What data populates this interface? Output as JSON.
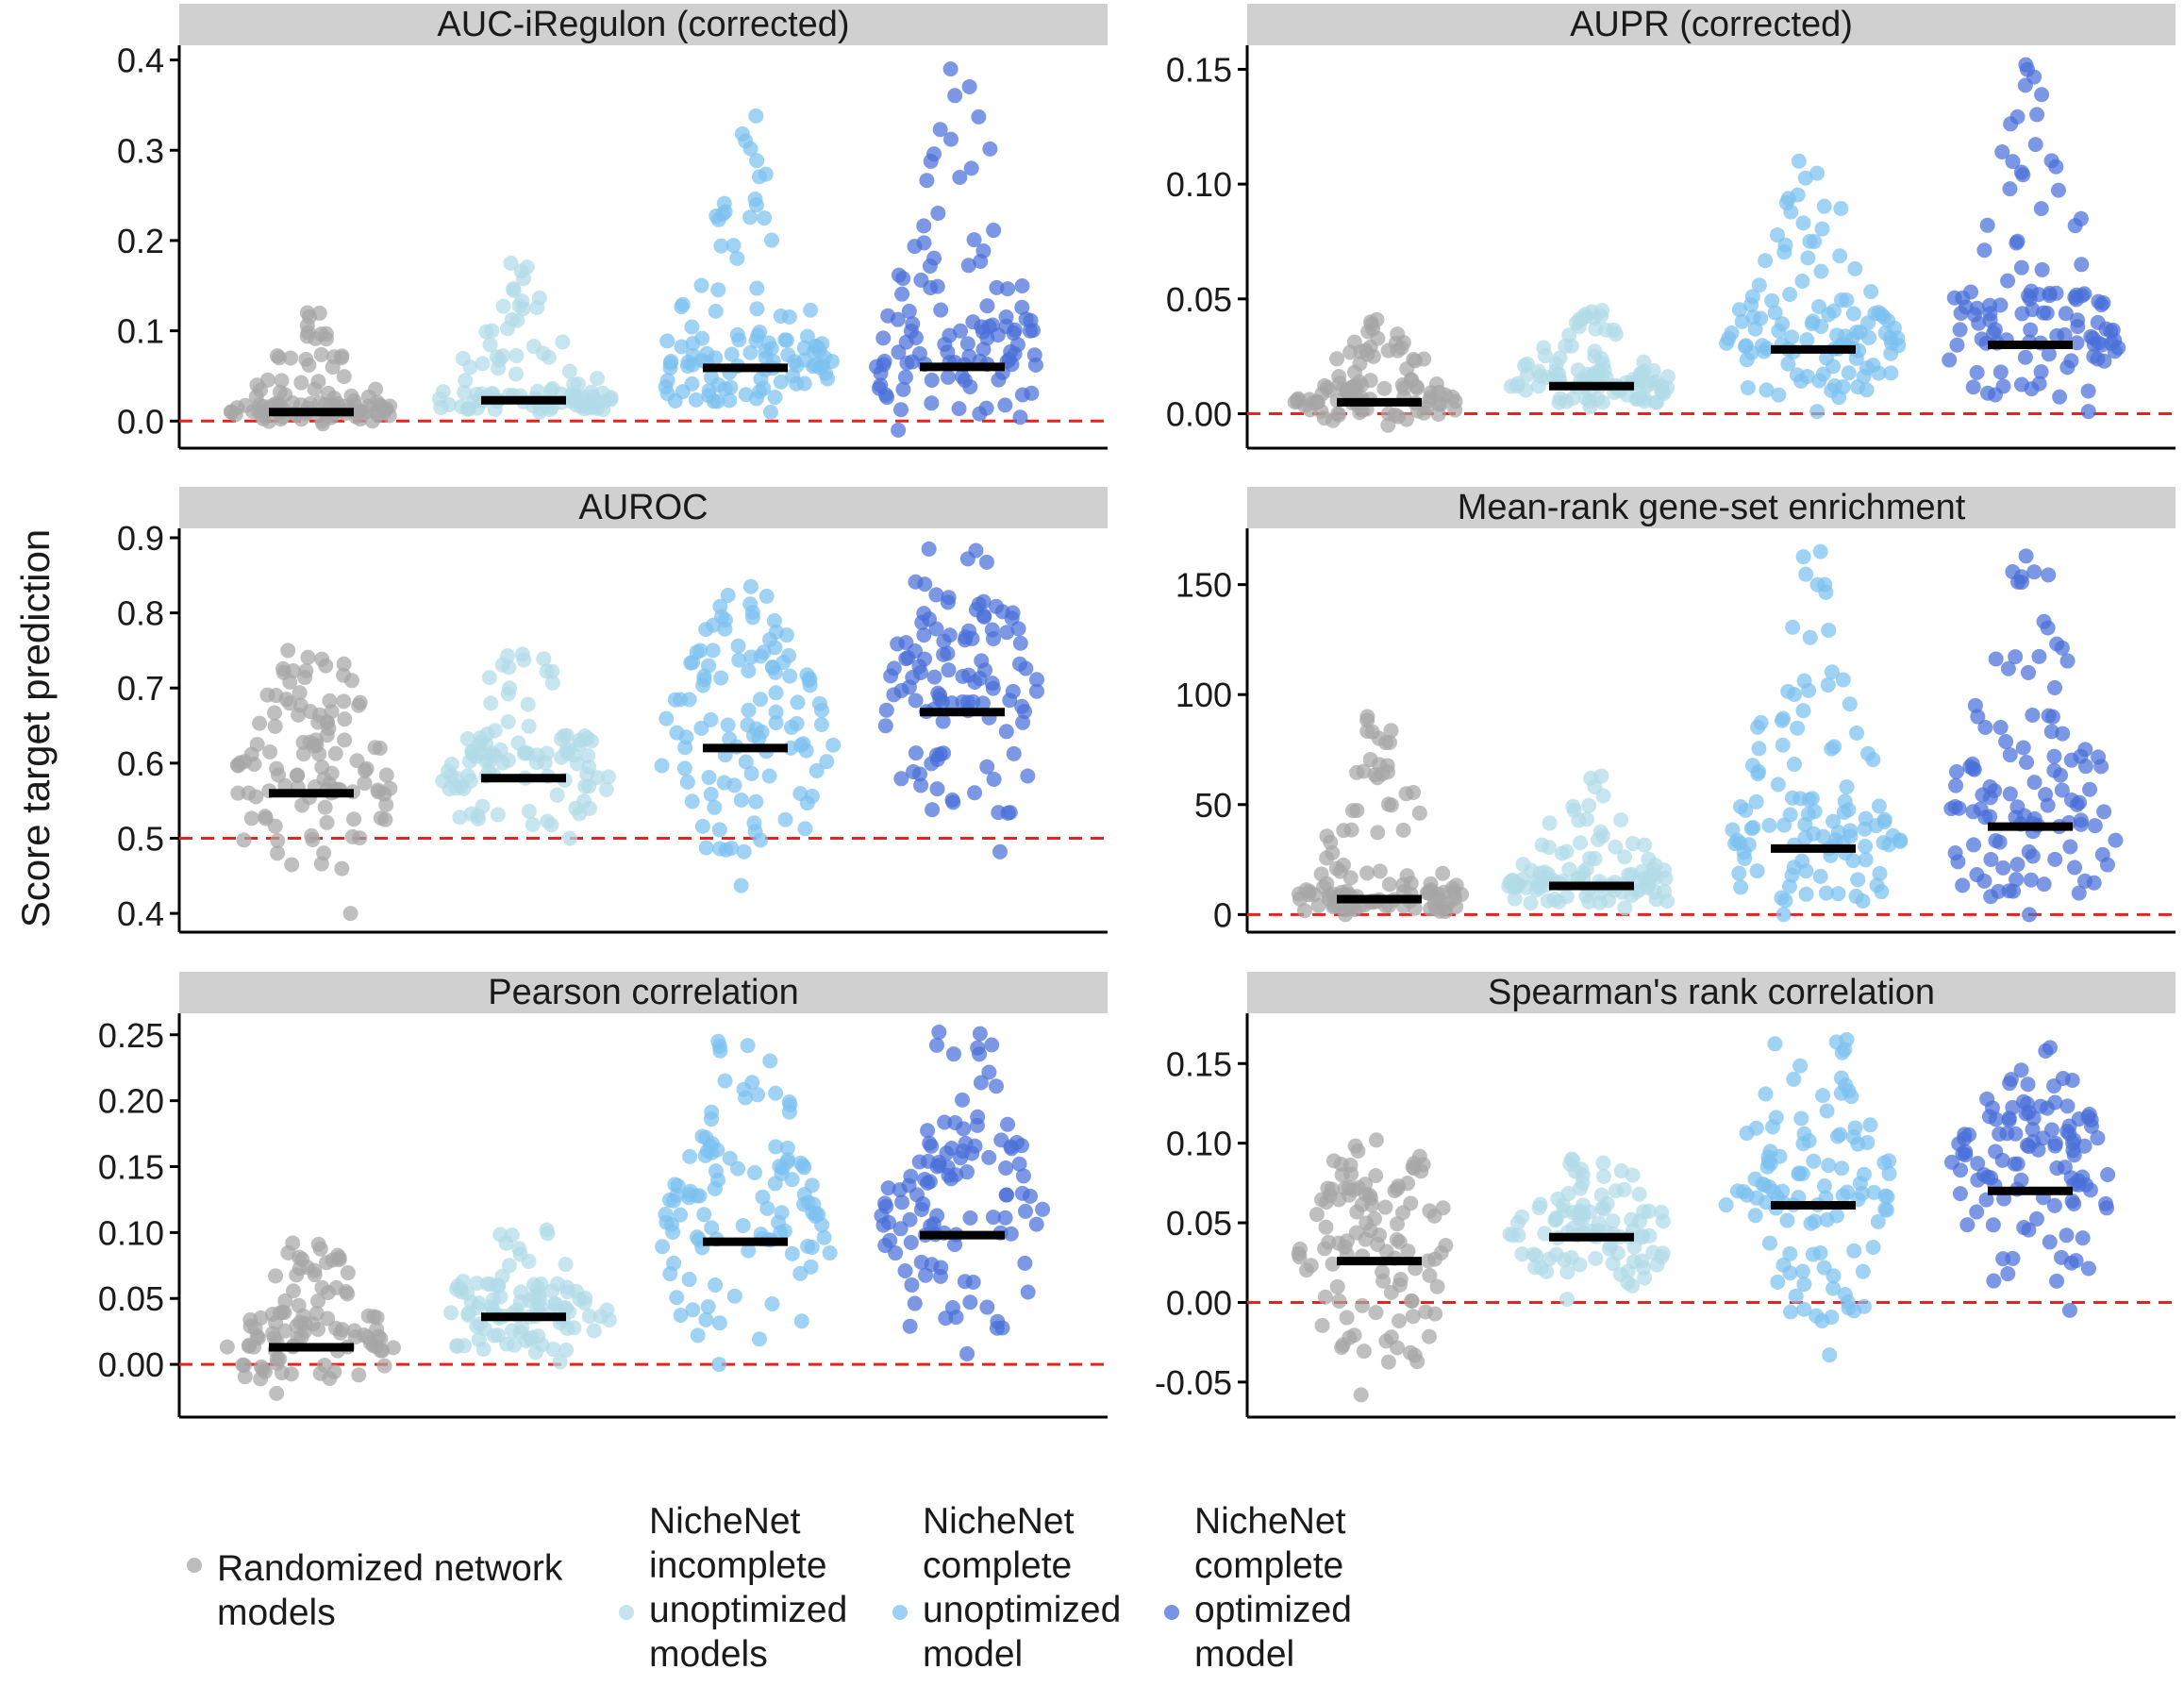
{
  "figure": {
    "ylabel": "Score target prediction"
  },
  "legend": {
    "items": [
      {
        "lines": [
          "Randomized network",
          "models"
        ],
        "color": "#a6a6a6"
      },
      {
        "lines": [
          "NicheNet",
          "incomplete",
          "unoptimized",
          "models"
        ],
        "color": "#b2dbe8"
      },
      {
        "lines": [
          "NicheNet",
          "complete",
          "unoptimized",
          "model"
        ],
        "color": "#7cc0f0"
      },
      {
        "lines": [
          "NicheNet",
          "complete",
          "optimized",
          "model"
        ],
        "color": "#4a6fd8"
      }
    ]
  },
  "chart_data": [
    {
      "type": "scatter",
      "title": "AUC-iRegulon (corrected)",
      "groups": [
        "Randomized network models",
        "NicheNet incomplete unoptimized models",
        "NicheNet complete unoptimized model",
        "NicheNet complete optimized model"
      ],
      "colors": [
        "#a6a6a6",
        "#b2dbe8",
        "#7cc0f0",
        "#4a6fd8"
      ],
      "ylim": [
        -0.03,
        0.41
      ],
      "yticks": [
        0.0,
        0.1,
        0.2,
        0.3,
        0.4
      ],
      "ytick_labels": [
        "0.0",
        "0.1",
        "0.2",
        "0.3",
        "0.4"
      ],
      "reference_line": 0.0,
      "medians": [
        0.01,
        0.023,
        0.059,
        0.06
      ],
      "summary": [
        {
          "min": -0.003,
          "max": 0.12,
          "n": 100
        },
        {
          "min": 0.01,
          "max": 0.175,
          "n": 100
        },
        {
          "min": 0.01,
          "max": 0.338,
          "n": 110
        },
        {
          "min": -0.01,
          "max": 0.39,
          "n": 110
        }
      ]
    },
    {
      "type": "scatter",
      "title": "AUPR (corrected)",
      "groups": [
        "Randomized network models",
        "NicheNet incomplete unoptimized models",
        "NicheNet complete unoptimized model",
        "NicheNet complete optimized model"
      ],
      "colors": [
        "#a6a6a6",
        "#b2dbe8",
        "#7cc0f0",
        "#4a6fd8"
      ],
      "ylim": [
        -0.015,
        0.158
      ],
      "yticks": [
        0.0,
        0.05,
        0.1,
        0.15
      ],
      "ytick_labels": [
        "0.00",
        "0.05",
        "0.10",
        "0.15"
      ],
      "reference_line": 0.0,
      "medians": [
        0.005,
        0.012,
        0.028,
        0.03
      ],
      "summary": [
        {
          "min": -0.005,
          "max": 0.041,
          "n": 100
        },
        {
          "min": 0.003,
          "max": 0.045,
          "n": 100
        },
        {
          "min": 0.001,
          "max": 0.11,
          "n": 110
        },
        {
          "min": 0.001,
          "max": 0.152,
          "n": 110
        }
      ]
    },
    {
      "type": "scatter",
      "title": "AUROC",
      "groups": [
        "Randomized network models",
        "NicheNet incomplete unoptimized models",
        "NicheNet complete unoptimized model",
        "NicheNet complete optimized model"
      ],
      "colors": [
        "#a6a6a6",
        "#b2dbe8",
        "#7cc0f0",
        "#4a6fd8"
      ],
      "ylim": [
        0.375,
        0.905
      ],
      "yticks": [
        0.4,
        0.5,
        0.6,
        0.7,
        0.8,
        0.9
      ],
      "ytick_labels": [
        "0.4",
        "0.5",
        "0.6",
        "0.7",
        "0.8",
        "0.9"
      ],
      "reference_line": 0.5,
      "medians": [
        0.56,
        0.58,
        0.62,
        0.668
      ],
      "summary": [
        {
          "min": 0.4,
          "max": 0.75,
          "n": 110
        },
        {
          "min": 0.5,
          "max": 0.745,
          "n": 100
        },
        {
          "min": 0.437,
          "max": 0.835,
          "n": 110
        },
        {
          "min": 0.482,
          "max": 0.885,
          "n": 110
        }
      ]
    },
    {
      "type": "scatter",
      "title": "Mean-rank gene-set enrichment",
      "groups": [
        "Randomized network models",
        "NicheNet incomplete unoptimized models",
        "NicheNet complete unoptimized model",
        "NicheNet complete optimized model"
      ],
      "colors": [
        "#a6a6a6",
        "#b2dbe8",
        "#7cc0f0",
        "#4a6fd8"
      ],
      "ylim": [
        -8,
        173
      ],
      "yticks": [
        0,
        50,
        100,
        150
      ],
      "ytick_labels": [
        "0",
        "50",
        "100",
        "150"
      ],
      "reference_line": 0,
      "medians": [
        7,
        13,
        30,
        40
      ],
      "summary": [
        {
          "min": 0,
          "max": 90,
          "n": 110
        },
        {
          "min": 3,
          "max": 63,
          "n": 100
        },
        {
          "min": 0,
          "max": 165,
          "n": 110
        },
        {
          "min": 0,
          "max": 163,
          "n": 110
        }
      ]
    },
    {
      "type": "scatter",
      "title": "Pearson correlation",
      "groups": [
        "Randomized network models",
        "NicheNet incomplete unoptimized models",
        "NicheNet complete unoptimized model",
        "NicheNet complete optimized model"
      ],
      "colors": [
        "#a6a6a6",
        "#b2dbe8",
        "#7cc0f0",
        "#4a6fd8"
      ],
      "ylim": [
        -0.04,
        0.262
      ],
      "yticks": [
        0.0,
        0.05,
        0.1,
        0.15,
        0.2,
        0.25
      ],
      "ytick_labels": [
        "0.00",
        "0.05",
        "0.10",
        "0.15",
        "0.20",
        "0.25"
      ],
      "reference_line": 0.0,
      "medians": [
        0.013,
        0.036,
        0.093,
        0.098
      ],
      "summary": [
        {
          "min": -0.022,
          "max": 0.092,
          "n": 100
        },
        {
          "min": 0.002,
          "max": 0.102,
          "n": 100
        },
        {
          "min": 0.0,
          "max": 0.245,
          "n": 110
        },
        {
          "min": 0.008,
          "max": 0.252,
          "n": 110
        }
      ]
    },
    {
      "type": "scatter",
      "title": "Spearman's rank correlation",
      "groups": [
        "Randomized network models",
        "NicheNet incomplete unoptimized models",
        "NicheNet complete unoptimized model",
        "NicheNet complete optimized model"
      ],
      "colors": [
        "#a6a6a6",
        "#b2dbe8",
        "#7cc0f0",
        "#4a6fd8"
      ],
      "ylim": [
        -0.072,
        0.178
      ],
      "yticks": [
        -0.05,
        0.0,
        0.05,
        0.1,
        0.15
      ],
      "ytick_labels": [
        "-0.05",
        "0.00",
        "0.05",
        "0.10",
        "0.15"
      ],
      "reference_line": 0.0,
      "medians": [
        0.026,
        0.041,
        0.061,
        0.07
      ],
      "summary": [
        {
          "min": -0.058,
          "max": 0.102,
          "n": 110
        },
        {
          "min": 0.002,
          "max": 0.09,
          "n": 100
        },
        {
          "min": -0.033,
          "max": 0.165,
          "n": 110
        },
        {
          "min": -0.005,
          "max": 0.16,
          "n": 110
        }
      ]
    }
  ]
}
